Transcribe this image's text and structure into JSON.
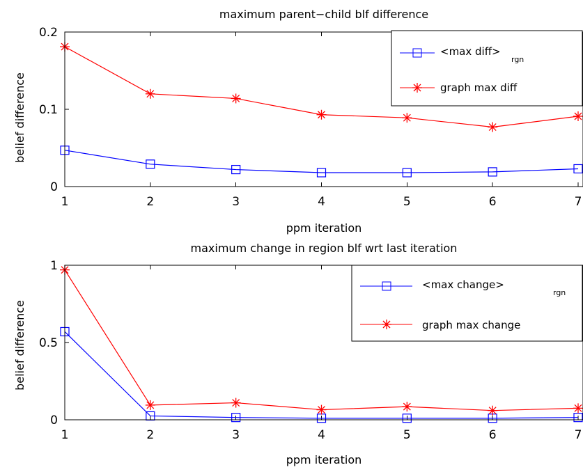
{
  "chart_data": [
    {
      "type": "line",
      "title": "maximum parent−child blf difference",
      "xlabel": "ppm iteration",
      "ylabel": "belief difference",
      "x": [
        1,
        2,
        3,
        4,
        5,
        6,
        7
      ],
      "xticks": [
        "1",
        "2",
        "3",
        "4",
        "5",
        "6",
        "7"
      ],
      "xlim": [
        1,
        7
      ],
      "ylim": [
        0,
        0.2
      ],
      "yticks": [
        "0",
        "0.1",
        "0.2"
      ],
      "grid": false,
      "legend_position": "top-right",
      "series": [
        {
          "name": "<max diff>",
          "name_subscript": "rgn",
          "color": "#0000ff",
          "marker": "square",
          "values": [
            0.047,
            0.029,
            0.022,
            0.018,
            0.018,
            0.019,
            0.023
          ]
        },
        {
          "name": "graph max diff",
          "color": "#ff0000",
          "marker": "asterisk",
          "values": [
            0.181,
            0.12,
            0.114,
            0.093,
            0.089,
            0.077,
            0.091
          ]
        }
      ]
    },
    {
      "type": "line",
      "title": "maximum change in region blf wrt last iteration",
      "xlabel": "ppm iteration",
      "ylabel": "belief difference",
      "x": [
        1,
        2,
        3,
        4,
        5,
        6,
        7
      ],
      "xticks": [
        "1",
        "2",
        "3",
        "4",
        "5",
        "6",
        "7"
      ],
      "xlim": [
        1,
        7
      ],
      "ylim": [
        0,
        1
      ],
      "yticks": [
        "0",
        "0.5",
        "1"
      ],
      "grid": false,
      "legend_position": "top-right",
      "series": [
        {
          "name": "<max change>",
          "name_subscript": "rgn",
          "color": "#0000ff",
          "marker": "square",
          "values": [
            0.57,
            0.025,
            0.015,
            0.01,
            0.01,
            0.01,
            0.015
          ]
        },
        {
          "name": "graph max change",
          "color": "#ff0000",
          "marker": "asterisk",
          "values": [
            0.97,
            0.095,
            0.11,
            0.065,
            0.085,
            0.06,
            0.075
          ]
        }
      ]
    }
  ]
}
